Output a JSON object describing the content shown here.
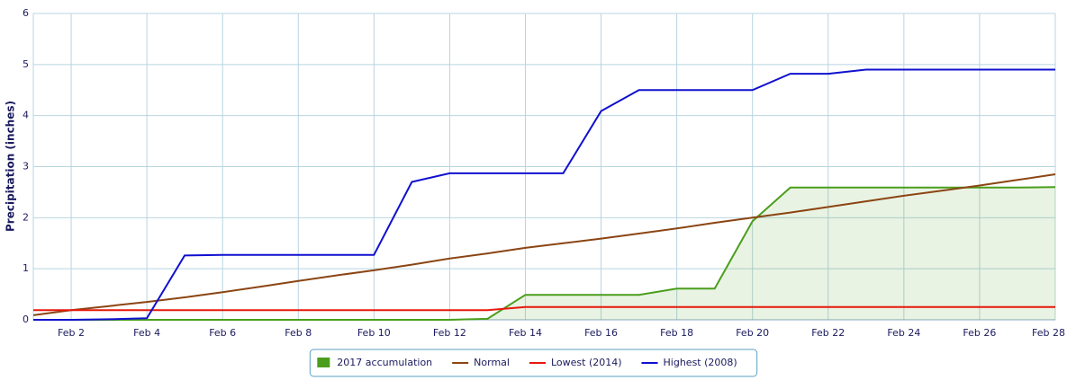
{
  "chart_data": {
    "type": "line",
    "y_label": "Precipitation (inches)",
    "categories": [
      null,
      "Feb 2",
      null,
      "Feb 4",
      null,
      "Feb 6",
      null,
      "Feb 8",
      null,
      "Feb 10",
      null,
      "Feb 12",
      null,
      "Feb 14",
      null,
      "Feb 16",
      null,
      "Feb 18",
      null,
      "Feb 20",
      null,
      "Feb 22",
      null,
      "Feb 24",
      null,
      "Feb 26",
      null,
      "Feb 28"
    ],
    "ylim": [
      0,
      6
    ],
    "yticks": [
      0,
      1,
      2,
      3,
      4,
      5,
      6
    ],
    "grid": true,
    "legend": "bottom",
    "series": [
      {
        "name": "2017 accumulation",
        "color": "#4a9e1c",
        "area": true,
        "values": [
          0,
          0,
          0,
          0,
          0,
          0,
          0,
          0,
          0,
          0,
          0,
          0,
          0.02,
          0.49,
          0.49,
          0.49,
          0.49,
          0.61,
          0.61,
          1.93,
          2.59,
          2.59,
          2.59,
          2.59,
          2.59,
          2.59,
          2.59,
          2.6
        ]
      },
      {
        "name": "Normal",
        "color": "#8b4513",
        "values": [
          0.09,
          0.19,
          0.27,
          0.35,
          0.44,
          0.54,
          0.65,
          0.76,
          0.87,
          0.97,
          1.08,
          1.2,
          1.3,
          1.41,
          1.5,
          1.59,
          1.69,
          1.79,
          1.9,
          2.0,
          2.1,
          2.21,
          2.32,
          2.43,
          2.53,
          2.63,
          2.74,
          2.85
        ]
      },
      {
        "name": "Lowest (2014)",
        "color": "#e8180c",
        "values": [
          0.19,
          0.19,
          0.19,
          0.19,
          0.19,
          0.19,
          0.19,
          0.19,
          0.19,
          0.19,
          0.19,
          0.19,
          0.19,
          0.25,
          0.25,
          0.25,
          0.25,
          0.25,
          0.25,
          0.25,
          0.25,
          0.25,
          0.25,
          0.25,
          0.25,
          0.25,
          0.25,
          0.25
        ]
      },
      {
        "name": "Highest (2008)",
        "color": "#1010d0",
        "values": [
          0,
          0,
          0.01,
          0.03,
          1.26,
          1.27,
          1.27,
          1.27,
          1.27,
          1.27,
          2.7,
          2.87,
          2.87,
          2.87,
          2.87,
          4.09,
          4.5,
          4.5,
          4.5,
          4.5,
          4.82,
          4.82,
          4.9,
          4.9,
          4.9,
          4.9,
          4.9,
          4.9
        ]
      }
    ]
  }
}
